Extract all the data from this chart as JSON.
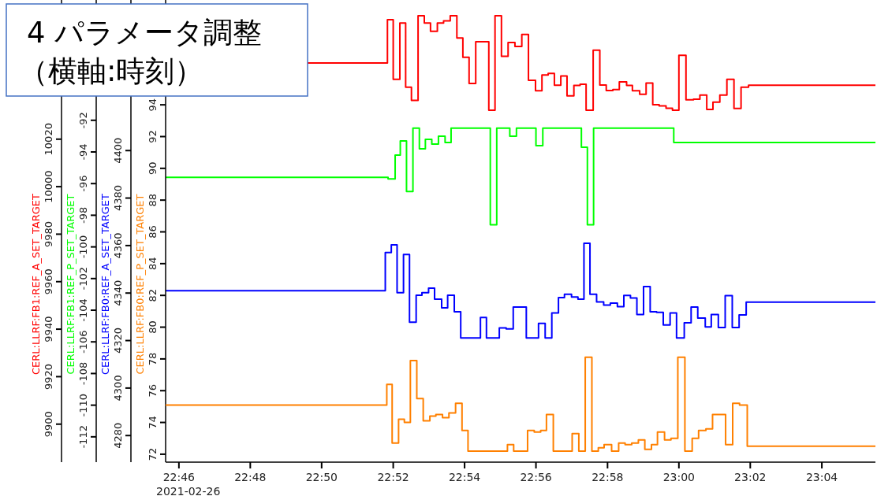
{
  "chart_data": [
    {
      "type": "step",
      "title": "4 パラメータ調整",
      "subtitle": "（横軸:時刻）",
      "annotations": [
        "2021-02-26"
      ],
      "xlim": [
        22.7605,
        23.0917
      ],
      "xticks": [
        {
          "value": 22.7667,
          "label": "22:46"
        },
        {
          "value": 22.8,
          "label": "22:48"
        },
        {
          "value": 22.8333,
          "label": "22:50"
        },
        {
          "value": 22.8667,
          "label": "22:52"
        },
        {
          "value": 22.9,
          "label": "22:54"
        },
        {
          "value": 22.9333,
          "label": "22:56"
        },
        {
          "value": 22.9667,
          "label": "22:58"
        },
        {
          "value": 23.0,
          "label": "23:00"
        },
        {
          "value": 23.0333,
          "label": "23:02"
        },
        {
          "value": 23.0667,
          "label": "23:04"
        }
      ],
      "ylim": [
        71.5,
        100.6
      ],
      "yticks": [
        72,
        74,
        76,
        78,
        80,
        82,
        84,
        86,
        88,
        90,
        92,
        94
      ],
      "grid": false,
      "legend": false,
      "line_style": "solid",
      "series": [
        {
          "name": "CERL:LLRF:FB0:REF_P_SET_TARGET",
          "axis": "y",
          "color": "#ff8000",
          "x": [
            22.7605,
            22.8637,
            22.8662,
            22.8692,
            22.8719,
            22.8747,
            22.8777,
            22.8807,
            22.8838,
            22.8866,
            22.8897,
            22.8927,
            22.8958,
            22.8988,
            22.9016,
            22.92,
            22.9229,
            22.9294,
            22.9325,
            22.9355,
            22.9382,
            22.9414,
            22.9502,
            22.9533,
            22.9563,
            22.9594,
            22.9624,
            22.9651,
            22.9686,
            22.9719,
            22.9749,
            22.978,
            22.9811,
            22.9841,
            22.9872,
            22.99,
            22.9933,
            22.9963,
            22.9995,
            23.0028,
            23.0062,
            23.0092,
            23.0126,
            23.0157,
            23.0218,
            23.0251,
            23.0283,
            23.0319,
            23.0917
          ],
          "values": [
            75.1,
            76.4,
            72.7,
            74.2,
            74.0,
            77.9,
            75.5,
            74.1,
            74.4,
            74.5,
            74.3,
            74.6,
            75.2,
            73.5,
            72.2,
            72.6,
            72.2,
            73.5,
            73.4,
            73.5,
            74.5,
            72.2,
            73.3,
            72.2,
            78.1,
            72.2,
            72.4,
            72.6,
            72.2,
            72.7,
            72.6,
            72.7,
            72.9,
            72.3,
            72.6,
            73.4,
            72.9,
            73.0,
            78.1,
            72.2,
            73.0,
            73.5,
            73.6,
            74.5,
            72.6,
            75.2,
            75.1,
            72.5,
            72.5
          ]
        }
      ]
    },
    {
      "type": "step",
      "xlim": [
        22.7605,
        23.0917
      ],
      "tick_labels": "y",
      "ylim": [
        4268.8,
        4463.4
      ],
      "yticks": [
        4280,
        4300,
        4320,
        4340,
        4360,
        4380,
        4400
      ],
      "grid": false,
      "legend": false,
      "line_style": "solid",
      "series": [
        {
          "name": "CERL:LLRF:FB0:REF_A_SET_TARGET",
          "axis": "y",
          "color": "#0000ff",
          "x": [
            22.7605,
            22.863,
            22.8658,
            22.8685,
            22.8715,
            22.8743,
            22.8774,
            22.8801,
            22.8832,
            22.886,
            22.8893,
            22.8921,
            22.8952,
            22.8982,
            22.9074,
            22.9102,
            22.9162,
            22.9194,
            22.9227,
            22.9288,
            22.9345,
            22.9376,
            22.9407,
            22.9438,
            22.9466,
            22.9499,
            22.9529,
            22.9557,
            22.9585,
            22.9616,
            22.9649,
            22.968,
            22.9713,
            22.9743,
            22.9774,
            22.9804,
            22.9835,
            22.9866,
            22.9896,
            22.9927,
            22.9959,
            22.9989,
            23.0025,
            23.0057,
            23.0088,
            23.0123,
            23.0151,
            23.0184,
            23.0216,
            23.0249,
            23.0281,
            23.0314,
            23.0917
          ],
          "values": [
            4341.0,
            4357.1,
            4360.3,
            4340.2,
            4356.2,
            4327.7,
            4339.1,
            4340.2,
            4342.1,
            4337.4,
            4333.8,
            4339.1,
            4332.1,
            4321.1,
            4329.7,
            4321.1,
            4325.3,
            4324.9,
            4334.1,
            4321.1,
            4327.2,
            4321.1,
            4331.6,
            4338.1,
            4339.5,
            4338.3,
            4337.4,
            4361.0,
            4339.5,
            4336.3,
            4334.9,
            4335.8,
            4334.3,
            4339.0,
            4337.9,
            4331.0,
            4342.7,
            4332.1,
            4331.9,
            4326.6,
            4331.6,
            4321.1,
            4327.5,
            4334.1,
            4329.5,
            4325.7,
            4331.0,
            4325.5,
            4338.9,
            4325.5,
            4330.8,
            4336.2,
            4336.2
          ]
        }
      ]
    },
    {
      "type": "step",
      "xlim": [
        22.7605,
        23.0917
      ],
      "tick_labels": "y",
      "ylim": [
        -113.6,
        -84.4
      ],
      "yticks": [
        -112,
        -110,
        -108,
        -106,
        -104,
        -102,
        -100,
        -98,
        -96,
        -94,
        -92
      ],
      "grid": false,
      "legend": false,
      "line_style": "solid",
      "series": [
        {
          "name": "CERL:LLRF:FB1:REF_P_SET_TARGET",
          "axis": "y",
          "color": "#00ff00",
          "x": [
            22.7605,
            22.8643,
            22.8676,
            22.87,
            22.8729,
            22.8759,
            22.8789,
            22.8817,
            22.8847,
            22.8878,
            22.8909,
            22.8937,
            22.912,
            22.915,
            22.9211,
            22.9242,
            22.9333,
            22.9365,
            22.9545,
            22.9573,
            22.9602,
            22.9976,
            23.0917
          ],
          "values": [
            -95.6,
            -95.7,
            -94.2,
            -93.3,
            -96.5,
            -92.5,
            -93.8,
            -93.2,
            -93.5,
            -93.0,
            -93.4,
            -92.5,
            -98.6,
            -92.5,
            -93.0,
            -92.5,
            -93.6,
            -92.5,
            -93.7,
            -98.6,
            -92.5,
            -93.4,
            -93.4
          ]
        }
      ]
    },
    {
      "type": "step",
      "xlim": [
        22.7605,
        23.0917
      ],
      "tick_labels": "y",
      "ylim": [
        9884.0,
        10078.6
      ],
      "yticks": [
        9900,
        9920,
        9940,
        9960,
        9980,
        10000,
        10020
      ],
      "grid": false,
      "legend": false,
      "line_style": "solid",
      "series": [
        {
          "name": "CERL:LLRF:FB1:REF_A_SET_TARGET",
          "axis": "y",
          "color": "#ff0000",
          "x": [
            22.8266,
            22.864,
            22.8667,
            22.8698,
            22.8725,
            22.8752,
            22.8783,
            22.8812,
            22.8841,
            22.8873,
            22.8902,
            22.8933,
            22.8964,
            22.8992,
            22.9021,
            22.9052,
            22.9113,
            22.9142,
            22.9172,
            22.9203,
            22.9235,
            22.9267,
            22.9298,
            22.9331,
            22.9361,
            22.939,
            22.9419,
            22.9449,
            22.9478,
            22.951,
            22.9539,
            22.9567,
            22.96,
            22.9631,
            22.9661,
            22.9692,
            22.9722,
            22.9756,
            22.9783,
            22.9817,
            22.9847,
            22.9878,
            22.9908,
            22.994,
            22.997,
            23.0,
            23.0033,
            23.0068,
            23.0098,
            23.013,
            23.0159,
            23.0191,
            23.0224,
            23.0257,
            23.029,
            23.0325,
            23.0917
          ],
          "values": [
            10052.1,
            10070.3,
            10045.2,
            10068.9,
            10041.9,
            10036.3,
            10072.0,
            10068.9,
            10065.4,
            10068.9,
            10069.8,
            10072.0,
            10062.6,
            10054.5,
            10043.5,
            10061.0,
            10032.2,
            10072.0,
            10054.9,
            10060.7,
            10059.0,
            10064.1,
            10044.8,
            10040.4,
            10047.0,
            10047.7,
            10042.7,
            10046.6,
            10038.2,
            10042.6,
            10043.1,
            10032.2,
            10057.5,
            10042.8,
            10040.5,
            10040.9,
            10044.1,
            10042.6,
            10040.4,
            10038.9,
            10043.6,
            10034.5,
            10034.0,
            10033.0,
            10032.2,
            10055.3,
            10036.6,
            10036.8,
            10038.6,
            10032.5,
            10035.6,
            10038.6,
            10045.2,
            10032.9,
            10041.9,
            10042.7,
            10042.7
          ]
        }
      ]
    }
  ]
}
